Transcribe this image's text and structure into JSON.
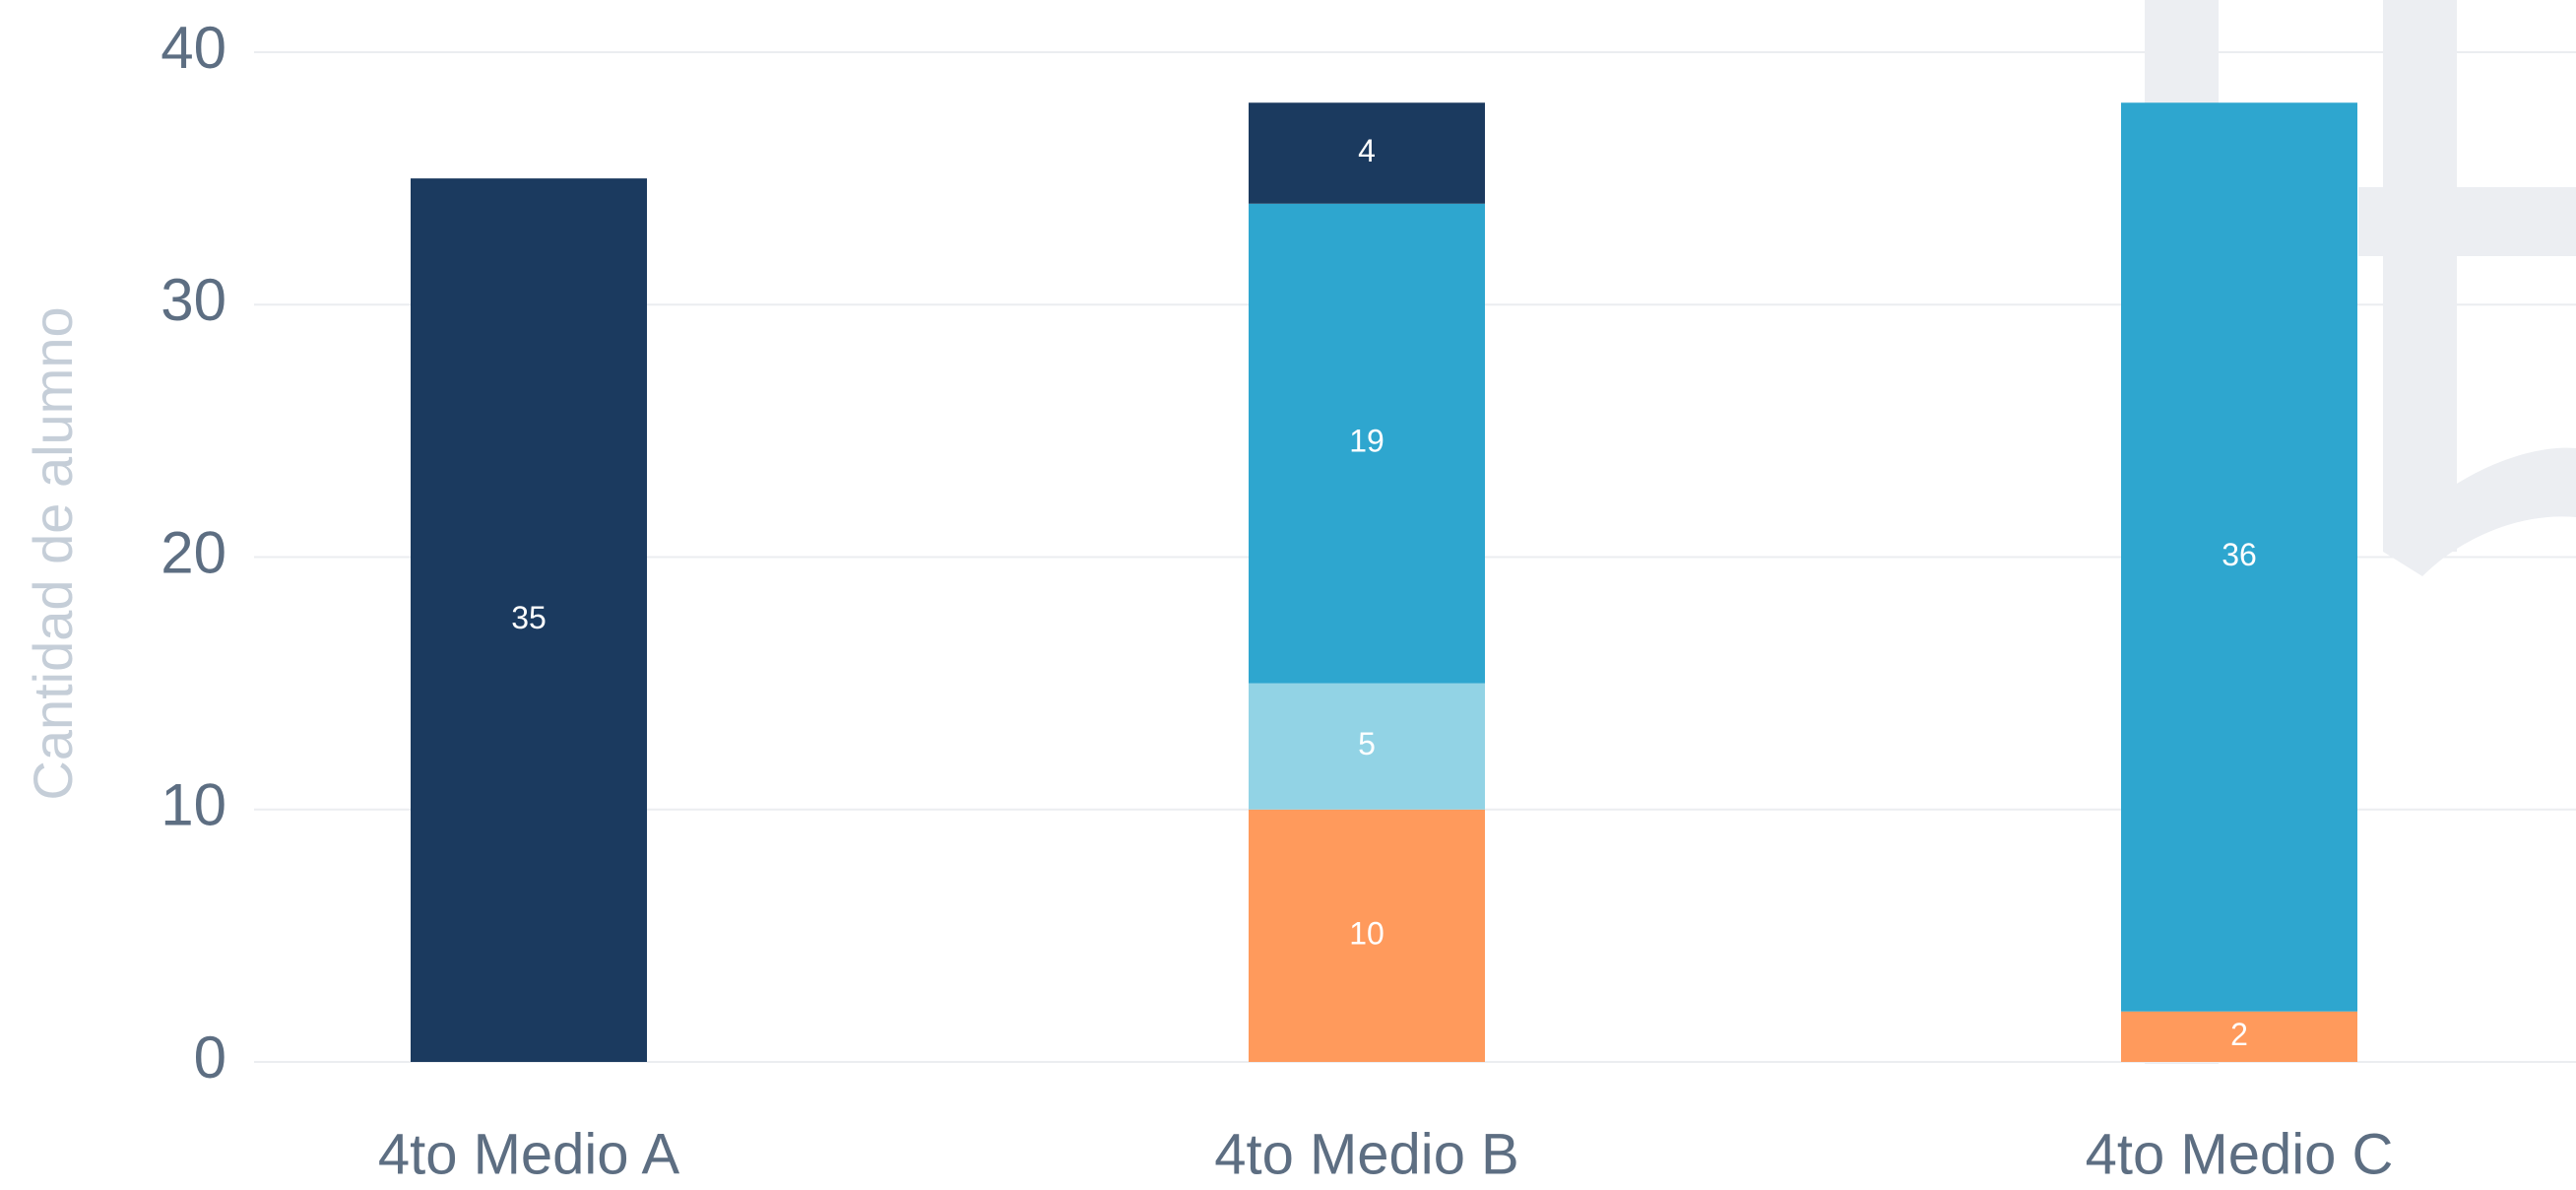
{
  "chart_data": {
    "type": "stacked_bar",
    "y_label": "Cantidad de alumno",
    "categories": [
      "4to Medio A",
      "4to Medio B",
      "4to Medio C"
    ],
    "series": [
      {
        "color": "#ff9a5c",
        "values": [
          null,
          10,
          2
        ]
      },
      {
        "color": "#92d3e5",
        "values": [
          null,
          5,
          null
        ]
      },
      {
        "color": "#2ea6cf",
        "values": [
          null,
          19,
          36
        ]
      },
      {
        "color": "#1b3a5f",
        "values": [
          35,
          4,
          null
        ]
      }
    ],
    "ylim": [
      0,
      40
    ],
    "yticks": [
      0,
      10,
      20,
      30,
      40
    ],
    "grid": true
  }
}
